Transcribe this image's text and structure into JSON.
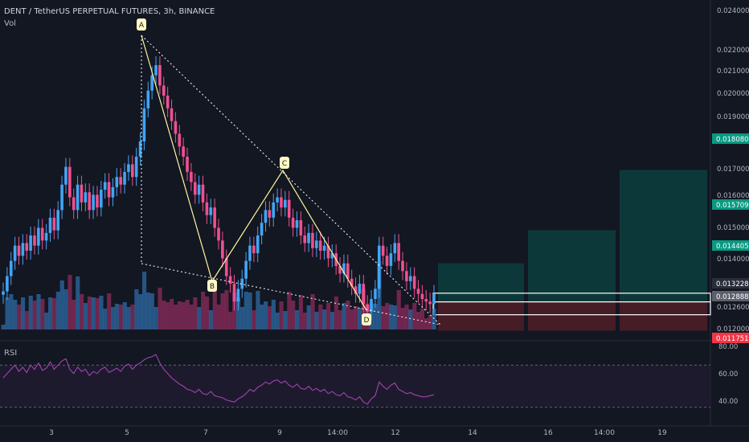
{
  "header": {
    "title": "DENT / TetherUS PERPETUAL FUTURES, 3h, BINANCE",
    "volume_label": "Vol",
    "rsi_label": "RSI"
  },
  "colors": {
    "background": "#131722",
    "up": "#42a5f5",
    "down": "#ef5090",
    "pattern": "#fff59d",
    "rsi_line": "#ab47bc",
    "target_zone": "#0b4a46",
    "stop_zone": "#5c1f2a",
    "box": "#ffffff"
  },
  "chart_data": {
    "type": "candlestick",
    "symbol": "DENT / TetherUS PERPETUAL FUTURES",
    "interval": "3h",
    "exchange": "BINANCE",
    "price_axis_ticks": [
      "0.024000",
      "0.022000",
      "0.021000",
      "0.020000",
      "0.019000",
      "0.017000",
      "0.016000",
      "0.015000",
      "0.014000",
      "0.012600",
      "0.012000"
    ],
    "price_markers": [
      {
        "value": "0.018080",
        "color": "#089981"
      },
      {
        "value": "0.015709",
        "color": "#089981"
      },
      {
        "value": "0.014405",
        "color": "#089981"
      },
      {
        "value": "0.013228",
        "color": "#2a2e39"
      },
      {
        "value": "0.012888",
        "color": "#5d606b"
      },
      {
        "value": "0.011751",
        "color": "#f23645"
      }
    ],
    "x_axis_ticks": [
      "3",
      "5",
      "7",
      "9",
      "14:00",
      "12",
      "14",
      "16",
      "14:00",
      "19"
    ],
    "rsi_axis_ticks": [
      "80.00",
      "60.00",
      "40.00"
    ],
    "harmonic_points": [
      {
        "label": "A",
        "price": 0.0222
      },
      {
        "label": "B",
        "price": 0.0125
      },
      {
        "label": "C",
        "price": 0.0168
      },
      {
        "label": "D",
        "price": 0.0115
      }
    ],
    "targets": [
      0.014405,
      0.015709,
      0.01808
    ],
    "entry_zone": [
      0.012888,
      0.013228
    ],
    "stop": 0.011751,
    "candles_close": [
      0.0133,
      0.0139,
      0.0145,
      0.0151,
      0.0147,
      0.0152,
      0.0149,
      0.0155,
      0.0151,
      0.0158,
      0.0153,
      0.0156,
      0.0162,
      0.0157,
      0.0165,
      0.0175,
      0.0182,
      0.017,
      0.0165,
      0.0175,
      0.0168,
      0.0172,
      0.0165,
      0.0171,
      0.0166,
      0.0173,
      0.0176,
      0.017,
      0.0174,
      0.0178,
      0.0175,
      0.018,
      0.0183,
      0.0178,
      0.0186,
      0.0192,
      0.0205,
      0.0212,
      0.0218,
      0.0222,
      0.0214,
      0.021,
      0.0205,
      0.02,
      0.0195,
      0.019,
      0.0186,
      0.018,
      0.0176,
      0.0171,
      0.0175,
      0.0168,
      0.0163,
      0.0166,
      0.0158,
      0.0153,
      0.0146,
      0.0139,
      0.0136,
      0.0129,
      0.0134,
      0.0138,
      0.0145,
      0.0151,
      0.0148,
      0.0155,
      0.016,
      0.0165,
      0.0162,
      0.0168,
      0.017,
      0.0166,
      0.0169,
      0.0162,
      0.0158,
      0.0161,
      0.0155,
      0.0152,
      0.0156,
      0.015,
      0.0153,
      0.0149,
      0.0151,
      0.0146,
      0.0148,
      0.0143,
      0.014,
      0.0144,
      0.0138,
      0.0135,
      0.0132,
      0.0136,
      0.0128,
      0.0125,
      0.013,
      0.0134,
      0.0151,
      0.0147,
      0.0143,
      0.0148,
      0.0152,
      0.0145,
      0.0141,
      0.0137,
      0.0139,
      0.0134,
      0.0132,
      0.013,
      0.0129,
      0.0128,
      0.0132
    ],
    "rsi_values": [
      58,
      62,
      66,
      70,
      64,
      68,
      63,
      70,
      66,
      72,
      65,
      67,
      73,
      66,
      70,
      74,
      76,
      66,
      62,
      68,
      64,
      66,
      60,
      64,
      62,
      66,
      68,
      63,
      65,
      67,
      64,
      69,
      71,
      66,
      70,
      72,
      75,
      77,
      78,
      80,
      72,
      66,
      62,
      58,
      55,
      52,
      50,
      47,
      46,
      44,
      47,
      43,
      42,
      45,
      41,
      40,
      39,
      37,
      36,
      35,
      38,
      40,
      43,
      47,
      45,
      49,
      51,
      54,
      52,
      55,
      56,
      53,
      55,
      51,
      49,
      52,
      48,
      47,
      50,
      46,
      48,
      45,
      47,
      43,
      45,
      42,
      41,
      44,
      40,
      39,
      37,
      40,
      35,
      33,
      38,
      41,
      54,
      50,
      47,
      51,
      53,
      47,
      45,
      43,
      44,
      42,
      41,
      40,
      40,
      41,
      42
    ]
  }
}
